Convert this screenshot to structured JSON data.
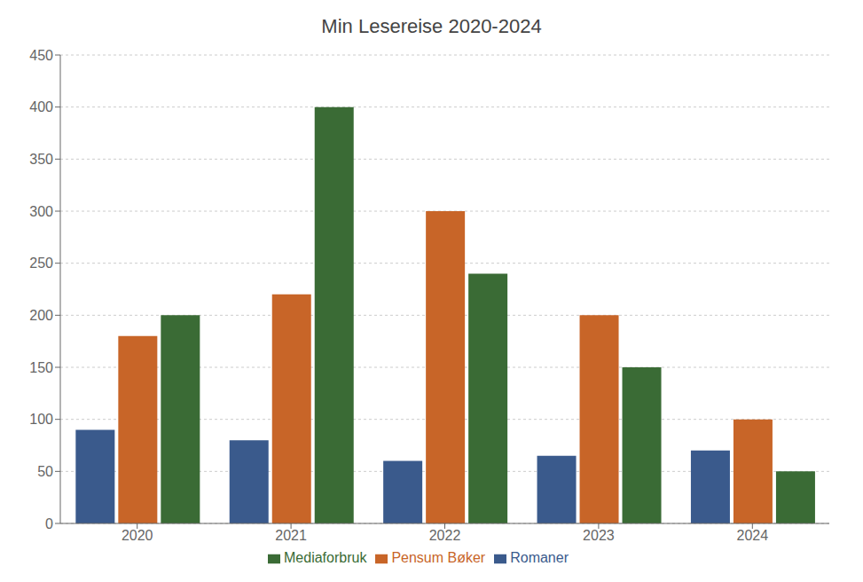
{
  "chart_data": {
    "type": "bar",
    "title": "Min Lesereise 2020-2024",
    "categories": [
      "2020",
      "2021",
      "2022",
      "2023",
      "2024"
    ],
    "series": [
      {
        "name": "Romaner",
        "color": "#3A5A8C",
        "values": [
          90,
          80,
          60,
          65,
          70
        ]
      },
      {
        "name": "Pensum Bøker",
        "color": "#C86528",
        "values": [
          180,
          220,
          300,
          200,
          100
        ]
      },
      {
        "name": "Mediaforbruk",
        "color": "#3A6B35",
        "values": [
          200,
          400,
          240,
          150,
          50
        ]
      }
    ],
    "ylim": [
      0,
      450
    ],
    "yticks": [
      0,
      50,
      100,
      150,
      200,
      250,
      300,
      350,
      400,
      450
    ],
    "grid": true,
    "legend": "bottom"
  }
}
